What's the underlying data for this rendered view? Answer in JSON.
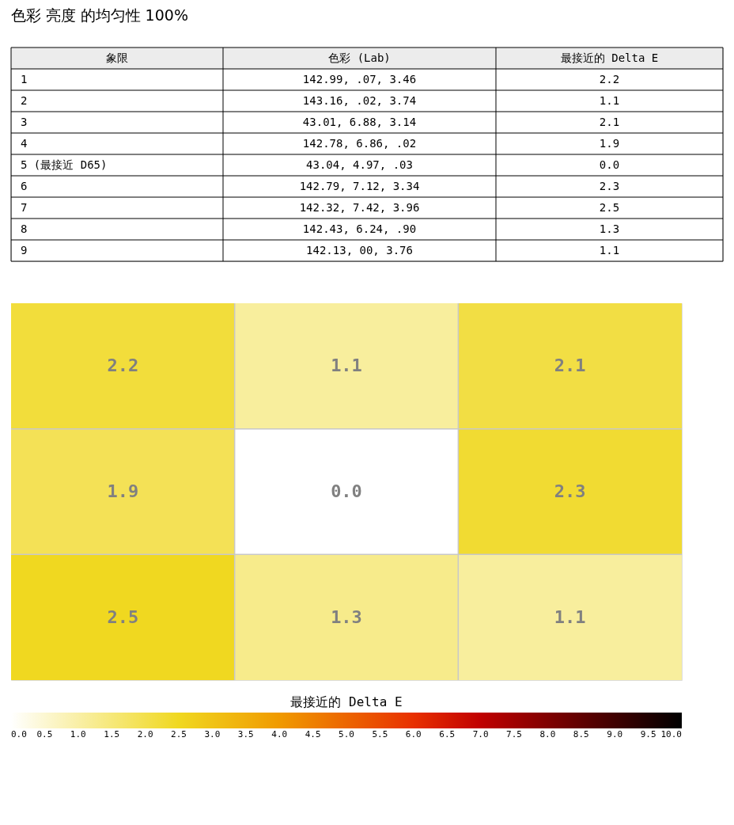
{
  "chart_data": [
    {
      "type": "other",
      "title": "色彩 亮度 的均匀性 100%",
      "annotations": [
        "象限",
        "色彩 (Lab)",
        "最接近的 Delta E",
        "1",
        "142.99, .07, 3.46",
        "2.2",
        "2",
        "143.16, .02, 3.74",
        "1.1",
        "3",
        "43.01, 6.88, 3.14",
        "2.1",
        "4",
        "142.78, 6.86, .02",
        "1.9",
        "5 (最接近 D65)",
        "43.04, 4.97, .03",
        "0.0",
        "6",
        "142.79, 7.12, 3.34",
        "2.3",
        "7",
        "142.32, 7.42, 3.96",
        "2.5",
        "8",
        "142.43, 6.24, .90",
        "1.3",
        "9",
        "142.13, 00, 3.76",
        "1.1"
      ]
    },
    {
      "type": "heatmap",
      "categories": [
        null,
        null,
        null
      ],
      "y_categories": [
        null,
        null,
        null
      ],
      "cells": [
        [
          2.2,
          1.1,
          2.1
        ],
        [
          1.9,
          0.0,
          2.3
        ],
        [
          2.5,
          1.3,
          1.1
        ]
      ],
      "cell_labels": [
        [
          "2.2",
          "1.1",
          "2.1"
        ],
        [
          "1.9",
          "0.0",
          "2.3"
        ],
        [
          "2.5",
          "1.3",
          "1.1"
        ]
      ],
      "grid": true,
      "tick_labels": false,
      "clabel": "最接近的 Delta E",
      "clim": [
        0,
        10
      ],
      "cticks": [
        {
          "value": 0,
          "label": "0.0"
        },
        {
          "value": 0.5,
          "label": "0.5"
        },
        {
          "value": 1,
          "label": "1.0"
        },
        {
          "value": 1.5,
          "label": "1.5"
        },
        {
          "value": 2,
          "label": "2.0"
        },
        {
          "value": 2.5,
          "label": "2.5"
        },
        {
          "value": 3,
          "label": "3.0"
        },
        {
          "value": 3.5,
          "label": "3.5"
        },
        {
          "value": 4,
          "label": "4.0"
        },
        {
          "value": 4.5,
          "label": "4.5"
        },
        {
          "value": 5,
          "label": "5.0"
        },
        {
          "value": 5.5,
          "label": "5.5"
        },
        {
          "value": 6,
          "label": "6.0"
        },
        {
          "value": 6.5,
          "label": "6.5"
        },
        {
          "value": 7,
          "label": "7.0"
        },
        {
          "value": 7.5,
          "label": "7.5"
        },
        {
          "value": 8,
          "label": "8.0"
        },
        {
          "value": 8.5,
          "label": "8.5"
        },
        {
          "value": 9,
          "label": "9.0"
        },
        {
          "value": 9.5,
          "label": "9.5"
        },
        {
          "value": 10,
          "label": "10.0"
        }
      ]
    }
  ]
}
